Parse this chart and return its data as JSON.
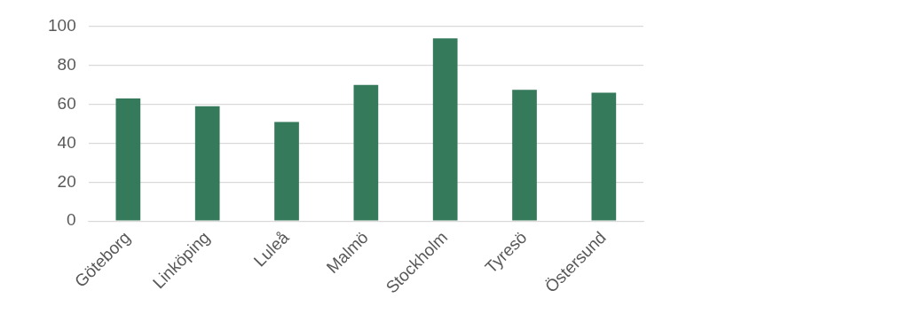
{
  "chart_data": {
    "type": "bar",
    "categories": [
      "Göteborg",
      "Linköping",
      "Luleå",
      "Malmö",
      "Stockholm",
      "Tyresö",
      "Östersund"
    ],
    "values": [
      63,
      59,
      51,
      70,
      94,
      67.5,
      66
    ],
    "color": "#357a5a",
    "ylim": [
      0,
      100
    ],
    "yticks": [
      0,
      20,
      40,
      60,
      80,
      100
    ],
    "grid": "y",
    "legend": false
  }
}
